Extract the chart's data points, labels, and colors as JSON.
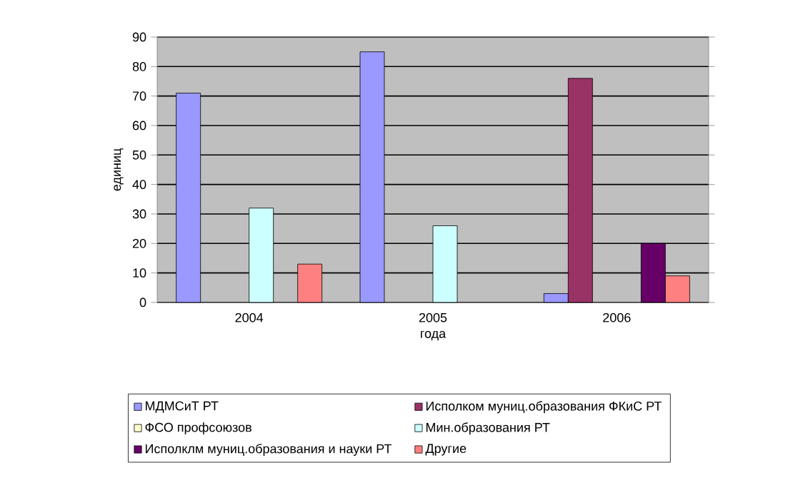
{
  "chart_data": {
    "type": "bar",
    "xlabel": "года",
    "ylabel": "единиц",
    "categories": [
      "2004",
      "2005",
      "2006"
    ],
    "series": [
      {
        "name": "МДМСиТ РТ",
        "color": "#9999ff",
        "values": [
          71,
          85,
          3
        ]
      },
      {
        "name": "Исполком муниц.образования ФКиС РТ",
        "color": "#993366",
        "values": [
          null,
          null,
          76
        ]
      },
      {
        "name": "ФСО профсоюзов",
        "color": "#ffffcc",
        "values": [
          null,
          null,
          null
        ]
      },
      {
        "name": "Мин.образования РТ",
        "color": "#ccffff",
        "values": [
          32,
          26,
          null
        ]
      },
      {
        "name": "Исполклм муниц.образования и науки РТ",
        "color": "#660066",
        "values": [
          null,
          null,
          20
        ]
      },
      {
        "name": "Другие",
        "color": "#ff8080",
        "values": [
          13,
          null,
          9
        ]
      }
    ],
    "ylim": [
      0,
      90
    ],
    "yticks": [
      0,
      10,
      20,
      30,
      40,
      50,
      60,
      70,
      80,
      90
    ],
    "grid": "y",
    "legend": "bottom"
  }
}
